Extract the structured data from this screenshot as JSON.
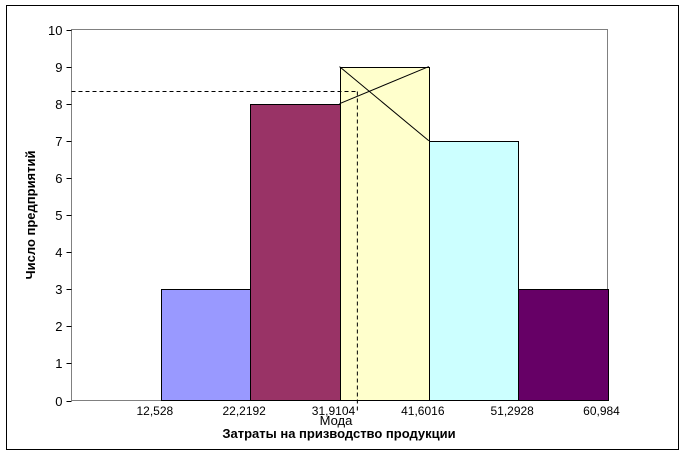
{
  "chart_data": {
    "type": "bar",
    "subtype": "histogram",
    "bin_edges": [
      "12,528",
      "22,2192",
      "31,9104",
      "41,6016",
      "51,2928",
      "60,984"
    ],
    "bin_edges_numeric": [
      12.528,
      22.2192,
      31.9104,
      41.6016,
      51.2928,
      60.984
    ],
    "values": [
      3,
      8,
      9,
      7,
      3
    ],
    "bar_colors": [
      "#9999ff",
      "#993366",
      "#ffffcc",
      "#ccffff",
      "#660066"
    ],
    "xlabel": "Затраты на призводство продукции",
    "ylabel": "Число предприятий",
    "ylim": [
      0,
      10
    ],
    "yticks": [
      "0",
      "1",
      "2",
      "3",
      "4",
      "5",
      "6",
      "7",
      "8",
      "9",
      "10"
    ],
    "xlim": [
      2.8368,
      60.984
    ],
    "grid": false,
    "legend": "none",
    "mode_annotation": {
      "label": "Мода",
      "mode_bin_index": 2,
      "mode_x": 33.8486,
      "mode_y": 8.33
    }
  }
}
